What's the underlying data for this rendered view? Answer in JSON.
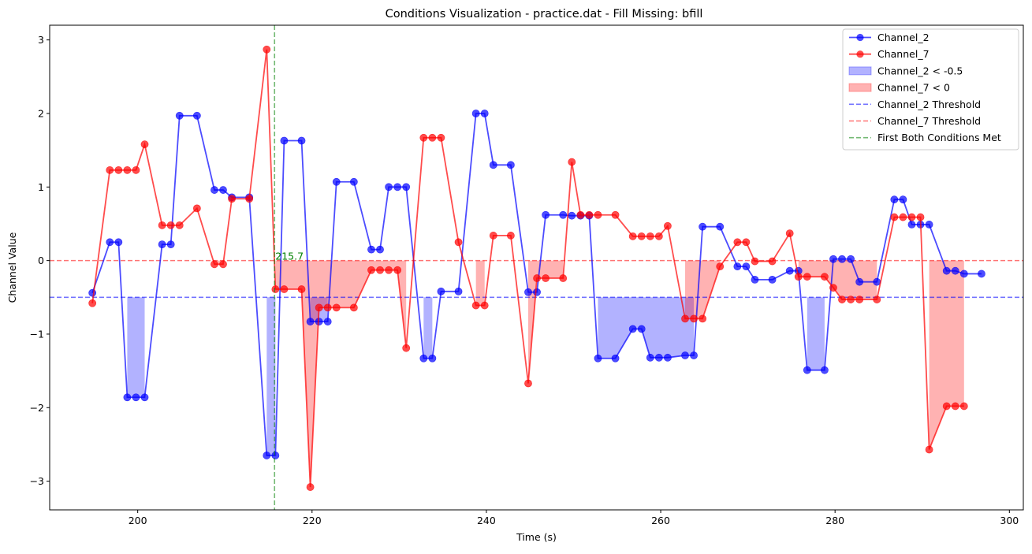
{
  "chart_data": {
    "type": "line",
    "title": "Conditions Visualization - practice.dat - Fill Missing: bfill",
    "xlabel": "Time (s)",
    "ylabel": "Channel Value",
    "xlim": [
      189.9,
      301.6
    ],
    "ylim": [
      -3.39,
      3.2
    ],
    "xticks": [
      200,
      220,
      240,
      260,
      280,
      300
    ],
    "yticks": [
      -3,
      -2,
      -1,
      0,
      1,
      2,
      3
    ],
    "x": [
      194.8,
      196.8,
      197.8,
      198.8,
      199.8,
      200.8,
      202.8,
      203.8,
      204.8,
      206.8,
      208.8,
      209.8,
      210.8,
      212.8,
      214.8,
      215.8,
      216.8,
      218.8,
      219.8,
      220.8,
      221.8,
      222.8,
      224.8,
      226.8,
      227.8,
      228.8,
      229.8,
      230.8,
      232.8,
      233.8,
      234.8,
      236.8,
      238.8,
      239.8,
      240.8,
      242.8,
      244.8,
      245.8,
      246.8,
      248.8,
      249.8,
      250.8,
      251.8,
      252.8,
      254.8,
      256.8,
      257.8,
      258.8,
      259.8,
      260.8,
      262.8,
      263.8,
      264.8,
      266.8,
      268.8,
      269.8,
      270.8,
      272.8,
      274.8,
      275.8,
      276.8,
      278.8,
      279.8,
      280.8,
      281.8,
      282.8,
      284.8,
      286.8,
      287.8,
      288.8,
      289.8,
      290.8,
      292.8,
      293.8,
      294.8,
      296.8
    ],
    "series": [
      {
        "name": "Channel_2",
        "color": "#0000ff",
        "values": [
          -0.44,
          0.25,
          0.25,
          -1.86,
          -1.86,
          -1.86,
          0.22,
          0.22,
          1.97,
          1.97,
          0.96,
          0.96,
          0.86,
          0.86,
          -2.65,
          -2.65,
          1.63,
          1.63,
          -0.83,
          -0.83,
          -0.83,
          1.07,
          1.07,
          0.15,
          0.15,
          1.0,
          1.0,
          1.0,
          -1.33,
          -1.33,
          -0.42,
          -0.42,
          2.0,
          2.0,
          1.3,
          1.3,
          -0.43,
          -0.43,
          0.62,
          0.62,
          0.61,
          0.61,
          0.61,
          -1.33,
          -1.33,
          -0.93,
          -0.93,
          -1.32,
          -1.32,
          -1.32,
          -1.29,
          -1.29,
          0.46,
          0.46,
          -0.08,
          -0.08,
          -0.26,
          -0.26,
          -0.14,
          -0.14,
          -1.49,
          -1.49,
          0.02,
          0.02,
          0.02,
          -0.29,
          -0.29,
          0.83,
          0.83,
          0.49,
          0.49,
          0.49,
          -0.14,
          -0.14,
          -0.18,
          -0.18
        ]
      },
      {
        "name": "Channel_7",
        "color": "#ff0000",
        "values": [
          -0.58,
          1.23,
          1.23,
          1.23,
          1.23,
          1.58,
          0.48,
          0.48,
          0.48,
          0.71,
          -0.05,
          -0.05,
          0.84,
          0.84,
          2.87,
          -0.39,
          -0.39,
          -0.39,
          -3.08,
          -0.64,
          -0.64,
          -0.64,
          -0.64,
          -0.13,
          -0.13,
          -0.13,
          -0.13,
          -1.19,
          1.67,
          1.67,
          1.67,
          0.25,
          -0.61,
          -0.61,
          0.34,
          0.34,
          -1.67,
          -0.24,
          -0.24,
          -0.24,
          1.34,
          0.62,
          0.62,
          0.62,
          0.62,
          0.33,
          0.33,
          0.33,
          0.33,
          0.47,
          -0.79,
          -0.79,
          -0.79,
          -0.08,
          0.25,
          0.25,
          -0.01,
          -0.01,
          0.37,
          -0.22,
          -0.22,
          -0.22,
          -0.37,
          -0.53,
          -0.53,
          -0.53,
          -0.53,
          0.59,
          0.59,
          0.59,
          0.59,
          -2.57,
          -1.98,
          -1.98,
          -1.98,
          null
        ]
      }
    ],
    "thresholds": [
      {
        "name": "Channel_2 Threshold",
        "value": -0.5,
        "color": "#0000ff"
      },
      {
        "name": "Channel_7 Threshold",
        "value": 0,
        "color": "#ff0000"
      }
    ],
    "fills": [
      {
        "name": "Channel_2 < -0.5",
        "series": 0,
        "threshold": -0.5,
        "color": "#0000ff"
      },
      {
        "name": "Channel_7 < 0",
        "series": 1,
        "threshold": 0,
        "color": "#ff0000"
      }
    ],
    "vline": {
      "name": "First Both Conditions Met",
      "x": 215.7,
      "label": "215.7",
      "color": "#008000"
    },
    "legend": {
      "position": "top-right",
      "entries": [
        "Channel_2",
        "Channel_7",
        "Channel_2 < -0.5",
        "Channel_7 < 0",
        "Channel_2 Threshold",
        "Channel_7 Threshold",
        "First Both Conditions Met"
      ]
    },
    "grid": false
  }
}
